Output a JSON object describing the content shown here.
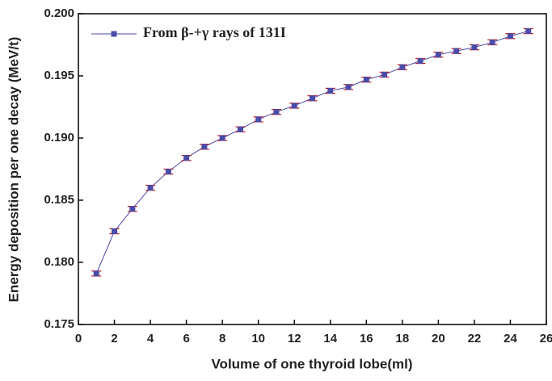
{
  "chart_data": {
    "type": "line",
    "x_label": "Volume of one thyroid lobe(ml)",
    "y_label": "Energy deposition per one decay (MeV/t)",
    "x": [
      1,
      2,
      3,
      4,
      5,
      6,
      7,
      8,
      9,
      10,
      11,
      12,
      13,
      14,
      15,
      16,
      17,
      18,
      19,
      20,
      21,
      22,
      23,
      24,
      25
    ],
    "series": [
      {
        "name": "From β-+γ rays of 131I",
        "color": "#4b4ba8",
        "error_color": "#cc1111",
        "values": [
          0.1791,
          0.1825,
          0.1843,
          0.186,
          0.1873,
          0.1884,
          0.1893,
          0.19,
          0.1907,
          0.1915,
          0.1921,
          0.1926,
          0.1932,
          0.1938,
          0.1941,
          0.1947,
          0.1951,
          0.1957,
          0.1962,
          0.1967,
          0.197,
          0.1973,
          0.1977,
          0.1982,
          0.1986
        ],
        "errors": [
          0.0002,
          0.0002,
          0.0002,
          0.0002,
          0.0002,
          0.0002,
          0.0002,
          0.0002,
          0.0002,
          0.0002,
          0.0002,
          0.0002,
          0.0002,
          0.0002,
          0.0002,
          0.0002,
          0.0002,
          0.0002,
          0.0002,
          0.0002,
          0.0002,
          0.0002,
          0.0002,
          0.0002,
          0.0002
        ]
      }
    ],
    "xlim": [
      0,
      26
    ],
    "xticks": [
      0,
      2,
      4,
      6,
      8,
      10,
      12,
      14,
      16,
      18,
      20,
      22,
      24,
      26
    ],
    "ylim": [
      0.175,
      0.2
    ],
    "yticks": [
      0.175,
      {
        "value": 0.18,
        "label": "0.180"
      },
      0.185,
      {
        "value": 0.19,
        "label": "0.190"
      },
      0.195,
      {
        "value": 0.2,
        "label": "0.200"
      }
    ],
    "legend": "upper-left",
    "grid": false
  }
}
